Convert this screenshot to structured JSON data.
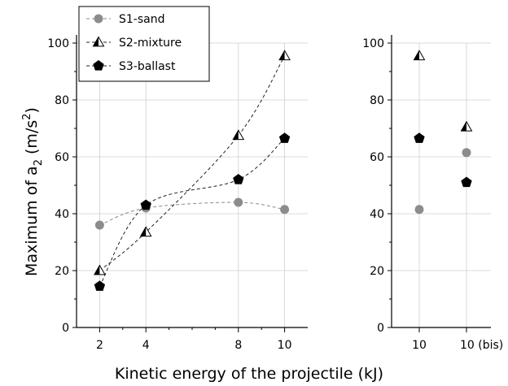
{
  "chart_data": {
    "type": "line",
    "x_axis_label": "Kinetic energy of the projectile (kJ)",
    "y_axis_label": {
      "prefix": "Maximum of a",
      "subscript": "2",
      "units_prefix": " (m/s",
      "units_superscript": "2",
      "units_suffix": ")"
    },
    "legend_position": "top-left",
    "grid": true,
    "panels": [
      {
        "id": "main",
        "x_type": "linear",
        "xlim": [
          1,
          11
        ],
        "ylim": [
          0,
          100
        ],
        "x_ticks": [
          2,
          4,
          8,
          10
        ],
        "x_tick_labels": [
          "2",
          "4",
          "8",
          "10"
        ],
        "y_ticks": [
          0,
          20,
          40,
          60,
          80,
          100
        ],
        "y_tick_labels": [
          "0",
          "20",
          "40",
          "60",
          "80",
          "100"
        ],
        "series": [
          {
            "name": "S1-sand",
            "marker": "circle",
            "color": "#8c8c8c",
            "line": "dashed-smooth",
            "x": [
              2,
              4,
              8,
              10
            ],
            "y": [
              36,
              42,
              44,
              41.5
            ]
          },
          {
            "name": "S2-mixture",
            "marker": "half-triangle",
            "color": "#000000",
            "line": "dashed-smooth",
            "x": [
              2,
              4,
              8,
              10
            ],
            "y": [
              20,
              33.5,
              67.5,
              95.5
            ]
          },
          {
            "name": "S3-ballast",
            "marker": "pentagon",
            "color": "#000000",
            "line": "dashed-smooth",
            "x": [
              2,
              4,
              8,
              10
            ],
            "y": [
              14.5,
              43,
              52,
              66.5
            ]
          }
        ]
      },
      {
        "id": "bis",
        "x_type": "categorical",
        "categories": [
          "10",
          "10 (bis)"
        ],
        "ylim": [
          0,
          100
        ],
        "y_ticks": [
          0,
          20,
          40,
          60,
          80,
          100
        ],
        "y_tick_labels": [
          "0",
          "20",
          "40",
          "60",
          "80",
          "100"
        ],
        "series": [
          {
            "name": "S1-sand",
            "marker": "circle",
            "color": "#8c8c8c",
            "values": [
              41.5,
              61.5
            ]
          },
          {
            "name": "S2-mixture",
            "marker": "half-triangle",
            "color": "#000000",
            "values": [
              95.5,
              70.5
            ]
          },
          {
            "name": "S3-ballast",
            "marker": "pentagon",
            "color": "#000000",
            "values": [
              66.5,
              51
            ]
          }
        ]
      }
    ]
  }
}
